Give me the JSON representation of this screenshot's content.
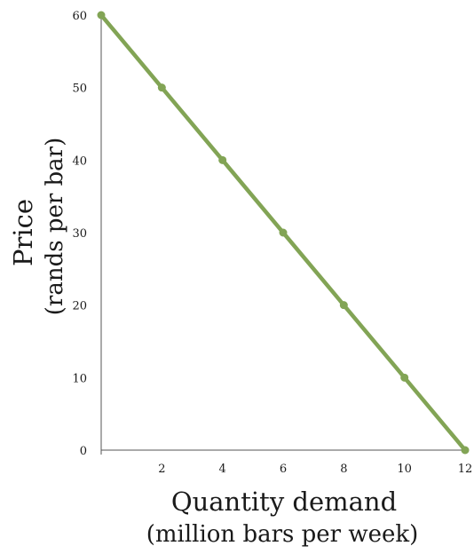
{
  "chart_data": {
    "type": "line",
    "title": "",
    "xlabel": "Quantity demand",
    "xlabel_sub": "(million bars per week)",
    "ylabel": "Price",
    "ylabel_sub": "(rands per bar)",
    "xlim": [
      0,
      12
    ],
    "ylim": [
      0,
      60
    ],
    "x_ticks": [
      {
        "value": 2,
        "label": "2"
      },
      {
        "value": 4,
        "label": "4"
      },
      {
        "value": 6,
        "label": "6"
      },
      {
        "value": 8,
        "label": "8"
      },
      {
        "value": 10,
        "label": "10"
      },
      {
        "value": 12,
        "label": "12"
      }
    ],
    "y_ticks": [
      {
        "value": 0,
        "label": "0"
      },
      {
        "value": 10,
        "label": "10"
      },
      {
        "value": 20,
        "label": "20"
      },
      {
        "value": 30,
        "label": "30"
      },
      {
        "value": 40,
        "label": "40"
      },
      {
        "value": 50,
        "label": "50"
      },
      {
        "value": 60,
        "label": "60"
      }
    ],
    "grid": false,
    "series": [
      {
        "color": "#82a455",
        "markers": true,
        "x": [
          0,
          2,
          4,
          6,
          8,
          10,
          12
        ],
        "y": [
          60,
          50,
          40,
          30,
          20,
          10,
          0
        ]
      }
    ]
  }
}
